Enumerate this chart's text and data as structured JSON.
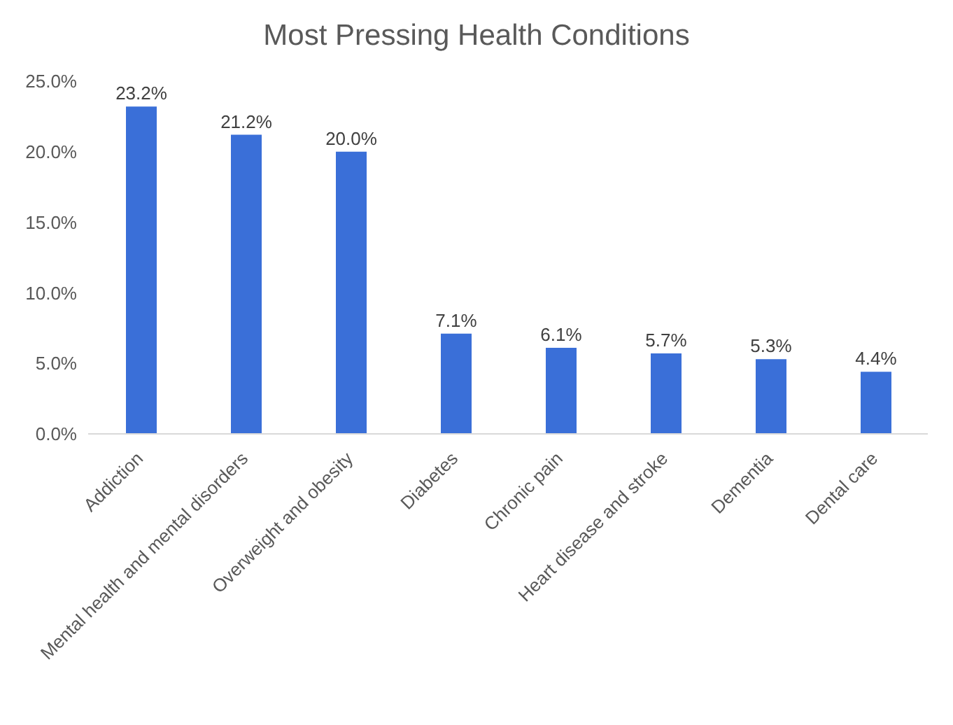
{
  "chart_data": {
    "type": "bar",
    "title": "Most Pressing Health Conditions",
    "categories": [
      "Addiction",
      "Mental health and mental disorders",
      "Overweight and obesity",
      "Diabetes",
      "Chronic pain",
      "Heart disease and stroke",
      "Dementia",
      "Dental care"
    ],
    "values": [
      23.2,
      21.2,
      20.0,
      7.1,
      6.1,
      5.7,
      5.3,
      4.4
    ],
    "value_labels": [
      "23.2%",
      "21.2%",
      "20.0%",
      "7.1%",
      "6.1%",
      "5.7%",
      "5.3%",
      "4.4%"
    ],
    "color": "#3a6fd8",
    "ylim": [
      0,
      25
    ],
    "yticks": [
      {
        "value": 0,
        "label": "0.0%"
      },
      {
        "value": 5,
        "label": "5.0%"
      },
      {
        "value": 10,
        "label": "10.0%"
      },
      {
        "value": 15,
        "label": "15.0%"
      },
      {
        "value": 20,
        "label": "20.0%"
      },
      {
        "value": 25,
        "label": "25.0%"
      }
    ],
    "grid": false
  }
}
